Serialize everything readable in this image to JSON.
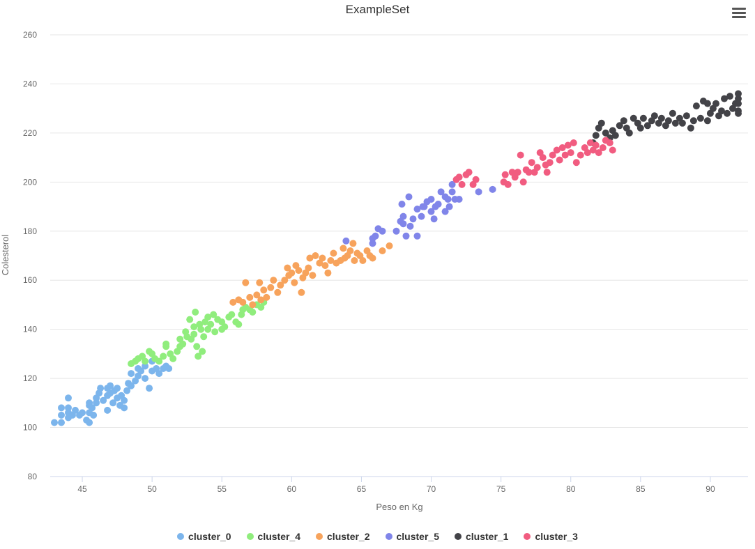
{
  "title": "ExampleSet",
  "menu_icon": "hamburger-menu-icon",
  "chart_data": {
    "type": "scatter",
    "title": "ExampleSet",
    "xlabel": "Peso en Kg",
    "ylabel": "Colesterol",
    "xlim": [
      42.7,
      92.7
    ],
    "ylim": [
      80,
      260
    ],
    "xticks": [
      45,
      50,
      55,
      60,
      65,
      70,
      75,
      80,
      85,
      90
    ],
    "yticks": [
      80,
      100,
      120,
      140,
      160,
      180,
      200,
      220,
      240,
      260
    ],
    "grid": "horizontal",
    "legend_position": "bottom",
    "series": [
      {
        "name": "cluster_0",
        "color": "#7cb5ec",
        "points": [
          [
            43,
            102
          ],
          [
            43.5,
            102
          ],
          [
            43.5,
            105
          ],
          [
            43.5,
            108
          ],
          [
            44,
            104
          ],
          [
            44,
            106
          ],
          [
            44,
            108
          ],
          [
            44,
            112
          ],
          [
            44.3,
            105
          ],
          [
            44.5,
            107
          ],
          [
            44.8,
            105
          ],
          [
            45,
            106
          ],
          [
            45.3,
            103
          ],
          [
            45.5,
            106
          ],
          [
            45.5,
            109
          ],
          [
            45.5,
            110
          ],
          [
            45.7,
            108
          ],
          [
            46,
            110
          ],
          [
            46,
            112
          ],
          [
            45.8,
            105
          ],
          [
            45.5,
            102
          ],
          [
            46.2,
            114
          ],
          [
            46.3,
            116
          ],
          [
            46.5,
            111
          ],
          [
            46.8,
            113
          ],
          [
            46.8,
            116
          ],
          [
            46.8,
            107
          ],
          [
            47,
            114
          ],
          [
            47,
            117
          ],
          [
            47.2,
            110
          ],
          [
            47.3,
            115
          ],
          [
            47.5,
            112
          ],
          [
            47.5,
            116
          ],
          [
            47.7,
            109
          ],
          [
            47.8,
            113
          ],
          [
            48,
            108
          ],
          [
            48,
            111
          ],
          [
            48.2,
            115
          ],
          [
            48.3,
            118
          ],
          [
            48.5,
            117
          ],
          [
            48.5,
            122
          ],
          [
            48.8,
            119
          ],
          [
            49,
            121
          ],
          [
            49,
            124
          ],
          [
            49.2,
            123
          ],
          [
            49.5,
            125
          ],
          [
            49.5,
            120
          ],
          [
            49.8,
            116
          ],
          [
            50,
            123
          ],
          [
            50,
            127
          ],
          [
            50.3,
            124
          ],
          [
            50.5,
            122
          ],
          [
            50.8,
            124
          ],
          [
            51,
            125
          ],
          [
            51.2,
            124
          ]
        ]
      },
      {
        "name": "cluster_4",
        "color": "#90ed7d",
        "points": [
          [
            48.5,
            126
          ],
          [
            48.8,
            127
          ],
          [
            49,
            128
          ],
          [
            49.3,
            129
          ],
          [
            49.5,
            127
          ],
          [
            49.8,
            131
          ],
          [
            50,
            130
          ],
          [
            50.2,
            128
          ],
          [
            50.5,
            127
          ],
          [
            50.8,
            129
          ],
          [
            51,
            133
          ],
          [
            51,
            134
          ],
          [
            51.3,
            130
          ],
          [
            51.5,
            128
          ],
          [
            51.8,
            131
          ],
          [
            52,
            133
          ],
          [
            52,
            136
          ],
          [
            52.2,
            134
          ],
          [
            52.4,
            139
          ],
          [
            52.5,
            137
          ],
          [
            52.7,
            144
          ],
          [
            52.8,
            136
          ],
          [
            53,
            141
          ],
          [
            53,
            138
          ],
          [
            53.1,
            147
          ],
          [
            53.2,
            133
          ],
          [
            53.3,
            129
          ],
          [
            53.4,
            142
          ],
          [
            53.5,
            140
          ],
          [
            53.6,
            131
          ],
          [
            53.7,
            137
          ],
          [
            53.8,
            143
          ],
          [
            54,
            140
          ],
          [
            54,
            145
          ],
          [
            54.2,
            142
          ],
          [
            54.4,
            146
          ],
          [
            54.5,
            139
          ],
          [
            54.7,
            144
          ],
          [
            55,
            143
          ],
          [
            55,
            140
          ],
          [
            55.2,
            141
          ],
          [
            55.5,
            145
          ],
          [
            55.7,
            146
          ],
          [
            56,
            143
          ],
          [
            56.2,
            142
          ],
          [
            56.4,
            146
          ],
          [
            56.5,
            148
          ],
          [
            56.7,
            149
          ],
          [
            57,
            148
          ],
          [
            57.2,
            147
          ],
          [
            57.5,
            150
          ],
          [
            57.8,
            149
          ],
          [
            58,
            151
          ]
        ]
      },
      {
        "name": "cluster_2",
        "color": "#f7a35c",
        "points": [
          [
            55.8,
            151
          ],
          [
            56.2,
            152
          ],
          [
            56.5,
            151
          ],
          [
            56.7,
            159
          ],
          [
            57,
            153
          ],
          [
            57.2,
            150
          ],
          [
            57.5,
            154
          ],
          [
            57.7,
            159
          ],
          [
            57.8,
            152
          ],
          [
            58,
            156
          ],
          [
            58.2,
            153
          ],
          [
            58.5,
            157
          ],
          [
            58.7,
            160
          ],
          [
            59,
            155
          ],
          [
            59.2,
            158
          ],
          [
            59.5,
            160
          ],
          [
            59.8,
            162
          ],
          [
            59.7,
            165
          ],
          [
            60,
            163
          ],
          [
            60.2,
            159
          ],
          [
            60.3,
            166
          ],
          [
            60.5,
            164
          ],
          [
            60.7,
            155
          ],
          [
            60.8,
            161
          ],
          [
            61,
            163
          ],
          [
            61.2,
            165
          ],
          [
            61.3,
            169
          ],
          [
            61.5,
            162
          ],
          [
            61.7,
            170
          ],
          [
            62,
            167
          ],
          [
            62.2,
            169
          ],
          [
            62.4,
            166
          ],
          [
            62.6,
            163
          ],
          [
            62.8,
            168
          ],
          [
            63,
            171
          ],
          [
            63.2,
            167
          ],
          [
            63.5,
            168
          ],
          [
            63.7,
            173
          ],
          [
            63.8,
            169
          ],
          [
            64,
            170
          ],
          [
            64.2,
            172
          ],
          [
            64.4,
            175
          ],
          [
            64.5,
            168
          ],
          [
            64.7,
            171
          ],
          [
            64.9,
            170
          ],
          [
            65.1,
            168
          ],
          [
            65.4,
            172
          ],
          [
            65.6,
            170
          ],
          [
            65.8,
            169
          ],
          [
            66.5,
            172
          ],
          [
            67,
            174
          ]
        ]
      },
      {
        "name": "cluster_5",
        "color": "#8085e9",
        "points": [
          [
            63.9,
            176
          ],
          [
            65.8,
            175
          ],
          [
            65.8,
            177
          ],
          [
            66,
            178
          ],
          [
            66.2,
            181
          ],
          [
            66.5,
            180
          ],
          [
            67.5,
            180
          ],
          [
            67.8,
            184
          ],
          [
            68,
            183
          ],
          [
            68,
            186
          ],
          [
            68.2,
            178
          ],
          [
            68.5,
            182
          ],
          [
            68.7,
            185
          ],
          [
            69,
            189
          ],
          [
            69,
            178
          ],
          [
            69.3,
            186
          ],
          [
            69.5,
            190
          ],
          [
            69.7,
            192
          ],
          [
            70,
            188
          ],
          [
            70,
            193
          ],
          [
            70.2,
            185
          ],
          [
            70.3,
            190
          ],
          [
            70.5,
            191
          ],
          [
            70.7,
            196
          ],
          [
            71,
            188
          ],
          [
            71,
            194
          ],
          [
            71.2,
            193
          ],
          [
            71.3,
            190
          ],
          [
            71.5,
            196
          ],
          [
            71.7,
            193
          ],
          [
            72,
            193
          ],
          [
            71.5,
            199
          ],
          [
            73.4,
            196
          ],
          [
            74.4,
            197
          ],
          [
            67.9,
            191
          ],
          [
            68.4,
            194
          ],
          [
            69.4,
            190
          ]
        ]
      },
      {
        "name": "cluster_1",
        "color": "#434348",
        "points": [
          [
            81.6,
            216
          ],
          [
            81.8,
            219
          ],
          [
            82,
            222
          ],
          [
            82.2,
            224
          ],
          [
            82.5,
            220
          ],
          [
            82.8,
            218
          ],
          [
            83,
            221
          ],
          [
            83.2,
            219
          ],
          [
            83.5,
            223
          ],
          [
            83.8,
            225
          ],
          [
            84,
            222
          ],
          [
            84.2,
            220
          ],
          [
            84.5,
            226
          ],
          [
            84.8,
            224
          ],
          [
            85,
            222
          ],
          [
            85.2,
            226
          ],
          [
            85.5,
            223
          ],
          [
            85.8,
            225
          ],
          [
            86,
            227
          ],
          [
            86.3,
            224
          ],
          [
            86.5,
            226
          ],
          [
            86.8,
            223
          ],
          [
            87,
            225
          ],
          [
            87.3,
            228
          ],
          [
            87.5,
            224
          ],
          [
            87.8,
            226
          ],
          [
            88,
            224
          ],
          [
            88.3,
            227
          ],
          [
            88.6,
            222
          ],
          [
            88.8,
            225
          ],
          [
            89,
            231
          ],
          [
            89.3,
            226
          ],
          [
            89.5,
            233
          ],
          [
            89.8,
            225
          ],
          [
            90,
            228
          ],
          [
            90.2,
            230
          ],
          [
            90.4,
            232
          ],
          [
            90.6,
            227
          ],
          [
            90.8,
            229
          ],
          [
            91,
            234
          ],
          [
            91.2,
            228
          ],
          [
            91.4,
            235
          ],
          [
            91.6,
            230
          ],
          [
            91.8,
            232
          ],
          [
            92,
            229
          ],
          [
            92,
            234
          ],
          [
            92,
            236
          ],
          [
            92,
            228
          ],
          [
            92,
            232
          ],
          [
            89.8,
            232
          ]
        ]
      },
      {
        "name": "cluster_3",
        "color": "#f15c80",
        "points": [
          [
            71.8,
            201
          ],
          [
            72,
            202
          ],
          [
            72.2,
            199
          ],
          [
            72.5,
            203
          ],
          [
            72.7,
            204
          ],
          [
            73,
            199
          ],
          [
            73.2,
            201
          ],
          [
            75.2,
            200
          ],
          [
            75.3,
            203
          ],
          [
            75.5,
            199
          ],
          [
            75.8,
            204
          ],
          [
            76,
            202
          ],
          [
            76.2,
            204
          ],
          [
            76.4,
            211
          ],
          [
            76.6,
            200
          ],
          [
            76.8,
            205
          ],
          [
            77,
            204
          ],
          [
            77.2,
            208
          ],
          [
            77.4,
            204
          ],
          [
            77.6,
            206
          ],
          [
            77.8,
            212
          ],
          [
            78,
            210
          ],
          [
            78.2,
            207
          ],
          [
            78.3,
            204
          ],
          [
            78.5,
            208
          ],
          [
            78.7,
            211
          ],
          [
            79,
            213
          ],
          [
            79.2,
            209
          ],
          [
            79.4,
            214
          ],
          [
            79.6,
            211
          ],
          [
            79.8,
            215
          ],
          [
            80,
            212
          ],
          [
            80.2,
            216
          ],
          [
            80.4,
            208
          ],
          [
            80.7,
            211
          ],
          [
            81,
            214
          ],
          [
            81.2,
            212
          ],
          [
            81.4,
            216
          ],
          [
            81.6,
            213
          ],
          [
            81.8,
            215
          ],
          [
            82,
            212
          ],
          [
            82.3,
            214
          ],
          [
            82.5,
            217
          ],
          [
            82.8,
            216
          ],
          [
            83,
            213
          ]
        ]
      }
    ]
  }
}
